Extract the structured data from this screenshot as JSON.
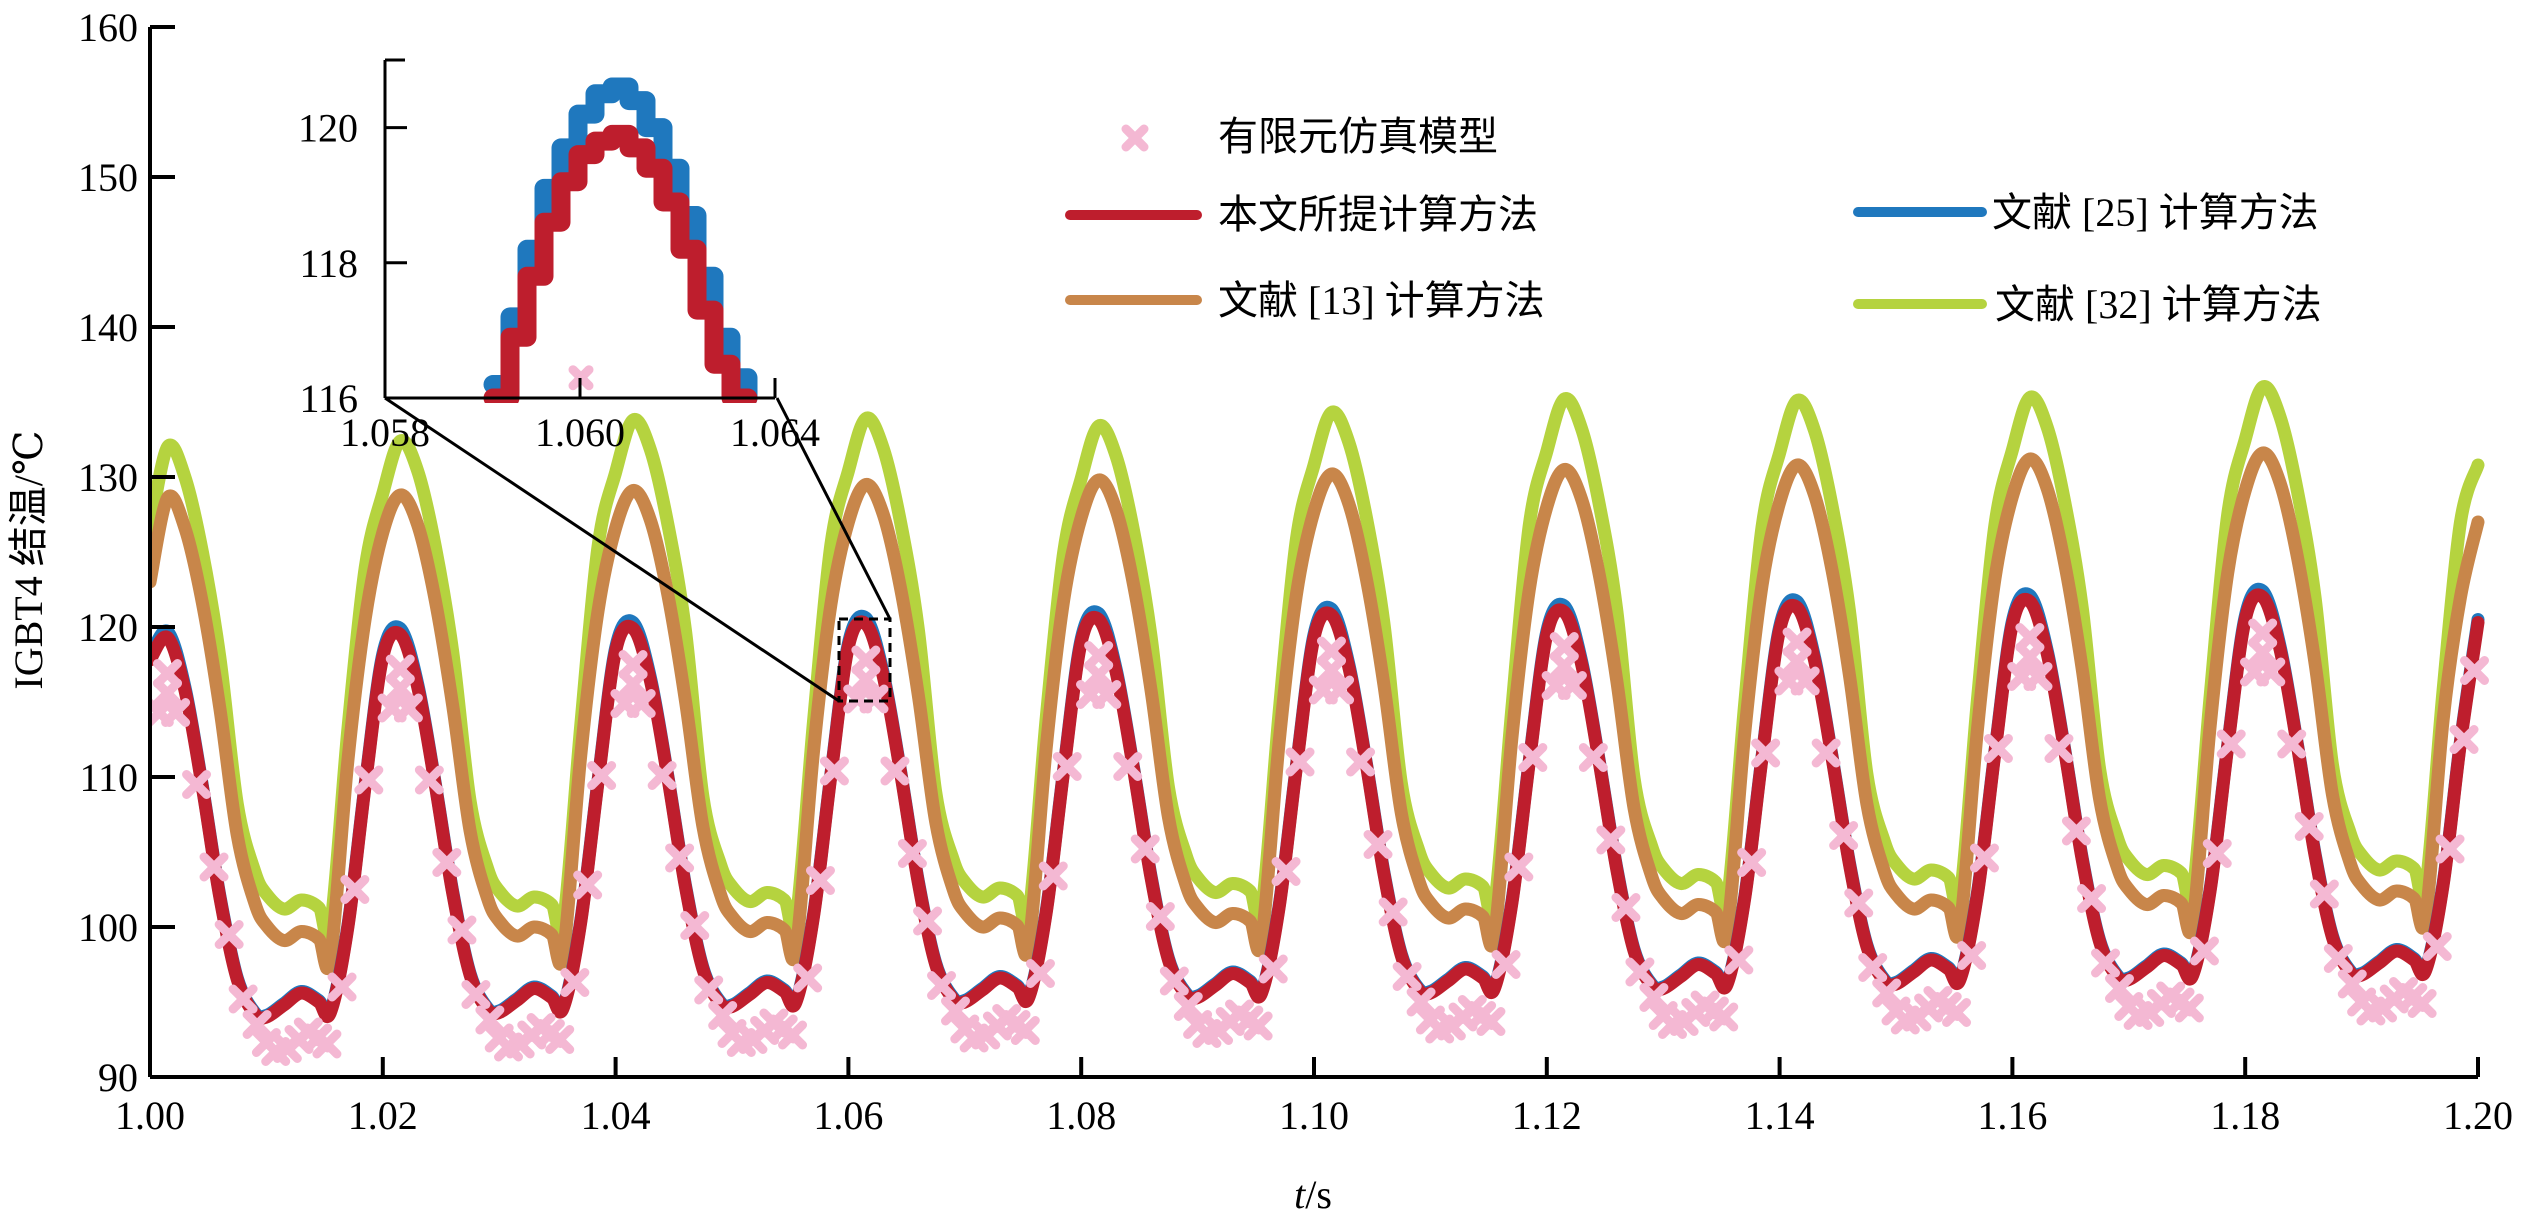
{
  "chart_data": {
    "type": "line",
    "title": "",
    "xlabel_italic": "t",
    "xlabel_unit": "/s",
    "ylabel": "IGBT4 结温/℃",
    "xlim": [
      1.0,
      1.2
    ],
    "ylim": [
      90,
      160
    ],
    "grid": false,
    "legend_placement": "top-right",
    "x_ticks": [
      "1.00",
      "1.02",
      "1.04",
      "1.06",
      "1.08",
      "1.10",
      "1.12",
      "1.14",
      "1.16",
      "1.18",
      "1.20"
    ],
    "y_ticks": [
      "90",
      "100",
      "110",
      "120",
      "130",
      "140",
      "150",
      "160"
    ],
    "legend": [
      {
        "key": "fe",
        "label": "有限元仿真模型",
        "marker": "x"
      },
      {
        "key": "proposed",
        "label": "本文所提计算方法",
        "marker": "line"
      },
      {
        "key": "ref25",
        "label": "文献 [25] 计算方法",
        "marker": "line"
      },
      {
        "key": "ref13",
        "label": "文献 [13] 计算方法",
        "marker": "line"
      },
      {
        "key": "ref32",
        "label": "文献 [32] 计算方法",
        "marker": "line"
      }
    ],
    "colors": {
      "fe": "#F4B8D3",
      "proposed": "#BE1E2D",
      "ref25": "#1F78BE",
      "ref13": "#C8864A",
      "ref32": "#B5D33F"
    },
    "cycle_offsets": [
      0.0,
      0.0015,
      0.003,
      0.0045,
      0.006,
      0.0075,
      0.009,
      0.01,
      0.0115,
      0.013,
      0.0145,
      0.0155,
      0.017,
      0.0185
    ],
    "cycle_period": 0.02,
    "series": [
      {
        "key": "ref32",
        "name": "文献 [32] 计算方法",
        "values": [
          126.5,
          132.0,
          130.0,
          125.0,
          118.0,
          108.2,
          103.7,
          102.2,
          101.2,
          101.8,
          101.3,
          100.0,
          113.2,
          124.0,
          128.9,
          132.4,
          130.4,
          125.4,
          118.4,
          108.4,
          103.9,
          102.4,
          101.4,
          102.0,
          101.5,
          100.2,
          113.4,
          125.4,
          130.3,
          133.8,
          131.8,
          126.8,
          119.8,
          108.7,
          104.2,
          102.7,
          101.7,
          102.3,
          101.8,
          100.5,
          113.7,
          125.5,
          130.4,
          133.9,
          131.9,
          126.9,
          119.9,
          109.0,
          104.5,
          103.0,
          102.0,
          102.6,
          102.1,
          100.8,
          114.0,
          125.0,
          129.9,
          133.4,
          131.4,
          126.4,
          119.4,
          109.3,
          104.8,
          103.3,
          102.3,
          102.9,
          102.4,
          101.1,
          114.3,
          125.9,
          130.8,
          134.3,
          132.3,
          127.3,
          120.3,
          109.6,
          105.1,
          103.6,
          102.6,
          103.2,
          102.7,
          101.4,
          114.6,
          126.8,
          131.7,
          135.2,
          133.2,
          128.2,
          121.2,
          109.9,
          105.4,
          103.9,
          102.9,
          103.5,
          103.0,
          101.7,
          114.9,
          126.7,
          131.6,
          135.1,
          133.1,
          128.1,
          121.1,
          110.2,
          105.7,
          104.2,
          103.2,
          103.8,
          103.3,
          102.0,
          115.2,
          126.8,
          131.8,
          135.3,
          133.3,
          128.3,
          121.3,
          110.5,
          106.0,
          104.5,
          103.5,
          104.1,
          103.6,
          102.3,
          115.5,
          127.5,
          132.5,
          136.0,
          134.0,
          129.0,
          122.0,
          110.8,
          106.3,
          104.8,
          103.8,
          104.4,
          103.9,
          102.6,
          115.8,
          127.0,
          130.8
        ]
      },
      {
        "key": "ref13",
        "name": "文献 [13] 计算方法",
        "values": [
          123.0,
          128.6,
          126.6,
          121.6,
          114.6,
          106.1,
          101.6,
          100.1,
          99.1,
          99.7,
          99.2,
          97.9,
          111.1,
          120.6,
          126.3,
          128.8,
          126.8,
          121.8,
          114.8,
          106.4,
          101.9,
          100.4,
          99.4,
          100.0,
          99.5,
          98.2,
          111.4,
          121.1,
          126.6,
          129.1,
          127.1,
          122.1,
          115.1,
          106.7,
          102.2,
          100.7,
          99.7,
          100.3,
          99.8,
          98.5,
          111.7,
          121.5,
          127.0,
          129.5,
          127.5,
          122.5,
          115.5,
          107.0,
          102.5,
          101.0,
          100.0,
          100.6,
          100.1,
          98.8,
          112.0,
          121.8,
          127.3,
          129.8,
          127.8,
          122.8,
          115.8,
          107.3,
          102.8,
          101.3,
          100.3,
          100.9,
          100.4,
          99.1,
          112.3,
          122.2,
          127.7,
          130.2,
          128.2,
          123.2,
          116.2,
          107.6,
          103.1,
          101.6,
          100.6,
          101.2,
          100.7,
          99.4,
          112.6,
          122.5,
          128.0,
          130.5,
          128.5,
          123.5,
          116.5,
          107.9,
          103.4,
          101.9,
          100.9,
          101.5,
          101.0,
          99.7,
          112.9,
          122.8,
          128.3,
          130.8,
          128.8,
          123.8,
          116.8,
          108.2,
          103.7,
          102.2,
          101.2,
          101.8,
          101.3,
          100.0,
          113.2,
          123.2,
          128.7,
          131.2,
          129.2,
          124.2,
          117.2,
          108.5,
          104.0,
          102.5,
          101.5,
          102.1,
          101.6,
          100.3,
          113.5,
          123.6,
          129.1,
          131.6,
          129.6,
          124.6,
          117.6,
          108.8,
          104.3,
          102.8,
          101.8,
          102.4,
          101.9,
          100.6,
          113.8,
          122.0,
          127.0
        ]
      },
      {
        "key": "ref25",
        "name": "文献 [25] 计算方法",
        "values": [
          118.0,
          119.7,
          116.0,
          109.4,
          102.1,
          96.6,
          94.3,
          94.1,
          94.9,
          95.7,
          95.1,
          94.4,
          100.1,
          109.6,
          118.2,
          119.9,
          116.2,
          109.6,
          102.4,
          96.9,
          94.6,
          94.4,
          95.2,
          96.0,
          95.4,
          94.7,
          100.4,
          109.8,
          118.6,
          120.3,
          116.6,
          110.0,
          102.8,
          97.3,
          95.0,
          94.8,
          95.6,
          96.4,
          95.8,
          95.1,
          100.8,
          110.2,
          118.9,
          120.6,
          116.9,
          110.3,
          103.1,
          97.6,
          95.3,
          95.1,
          95.9,
          96.7,
          96.1,
          95.4,
          101.1,
          110.5,
          119.2,
          120.9,
          117.2,
          110.6,
          103.4,
          97.9,
          95.6,
          95.4,
          96.2,
          97.0,
          96.4,
          95.7,
          101.4,
          110.8,
          119.5,
          121.2,
          117.5,
          110.9,
          103.7,
          98.2,
          95.9,
          95.7,
          96.5,
          97.3,
          96.7,
          96.0,
          101.7,
          111.1,
          119.7,
          121.4,
          117.7,
          111.1,
          104.0,
          98.5,
          96.2,
          96.0,
          96.8,
          97.6,
          97.0,
          96.3,
          102.0,
          111.4,
          120.0,
          121.7,
          118.0,
          111.4,
          104.3,
          98.8,
          96.5,
          96.3,
          97.1,
          97.9,
          97.3,
          96.6,
          102.3,
          111.7,
          120.4,
          122.1,
          118.4,
          111.8,
          104.6,
          99.1,
          96.8,
          96.6,
          97.4,
          98.2,
          97.6,
          96.9,
          102.6,
          112.1,
          120.7,
          122.4,
          118.7,
          112.1,
          104.9,
          99.4,
          97.1,
          96.9,
          97.7,
          98.5,
          97.9,
          97.2,
          102.9,
          112.4,
          120.5
        ]
      },
      {
        "key": "proposed",
        "name": "本文所提计算方法",
        "values": [
          117.8,
          119.3,
          115.8,
          109.3,
          102.0,
          96.5,
          94.2,
          94.0,
          94.8,
          95.6,
          95.0,
          94.3,
          100.0,
          109.5,
          118.0,
          119.5,
          116.0,
          109.5,
          102.3,
          96.8,
          94.5,
          94.3,
          95.1,
          95.9,
          95.3,
          94.6,
          100.3,
          109.7,
          118.4,
          119.9,
          116.4,
          109.9,
          102.7,
          97.2,
          94.9,
          94.7,
          95.5,
          96.3,
          95.7,
          95.0,
          100.7,
          110.1,
          118.7,
          120.2,
          116.7,
          110.2,
          103.0,
          97.5,
          95.2,
          95.0,
          95.8,
          96.6,
          96.0,
          95.3,
          101.0,
          110.4,
          119.0,
          120.5,
          117.0,
          110.5,
          103.3,
          97.8,
          95.5,
          95.3,
          96.1,
          96.9,
          96.3,
          95.6,
          101.3,
          110.7,
          119.3,
          120.8,
          117.3,
          110.8,
          103.6,
          98.1,
          95.8,
          95.6,
          96.4,
          97.2,
          96.6,
          95.9,
          101.6,
          111.0,
          119.5,
          121.0,
          117.5,
          111.0,
          103.9,
          98.4,
          96.1,
          95.9,
          96.7,
          97.5,
          96.9,
          96.2,
          101.9,
          111.3,
          119.8,
          121.3,
          117.8,
          111.3,
          104.2,
          98.7,
          96.4,
          96.2,
          97.0,
          97.8,
          97.2,
          96.5,
          102.2,
          111.6,
          120.2,
          121.7,
          118.2,
          111.7,
          104.5,
          99.0,
          96.7,
          96.5,
          97.3,
          98.1,
          97.5,
          96.8,
          102.5,
          112.0,
          120.5,
          122.0,
          118.5,
          112.0,
          104.8,
          99.3,
          97.0,
          96.8,
          97.6,
          98.4,
          97.8,
          97.1,
          102.8,
          112.3,
          120.3
        ]
      }
    ],
    "fe_offsets": [
      0.0008,
      0.0022,
      0.0015,
      0.0015,
      0.004,
      0.0055,
      0.0068,
      0.008,
      0.0092,
      0.01,
      0.0108,
      0.0118,
      0.0128,
      0.0136,
      0.0144,
      0.0152,
      0.0165,
      0.0176,
      0.0188
    ],
    "fe_points": [
      [
        114.3,
        114.3,
        115.6,
        116.9,
        109.5,
        104.0,
        99.5,
        95.2,
        93.5,
        92.3,
        91.7,
        91.9,
        92.5,
        93.0,
        92.6,
        92.2,
        96.0,
        102.5,
        109.8
      ],
      [
        114.6,
        114.6,
        115.9,
        117.2,
        109.8,
        104.3,
        99.8,
        95.5,
        93.8,
        92.6,
        92.0,
        92.2,
        92.8,
        93.3,
        92.9,
        92.5,
        96.3,
        102.8,
        110.1
      ],
      [
        114.9,
        114.9,
        116.2,
        117.5,
        110.1,
        104.6,
        100.1,
        95.8,
        94.1,
        92.9,
        92.3,
        92.5,
        93.1,
        93.6,
        93.2,
        92.8,
        96.6,
        103.1,
        110.4
      ],
      [
        115.2,
        115.2,
        116.5,
        117.8,
        110.4,
        104.9,
        100.4,
        96.1,
        94.4,
        93.2,
        92.6,
        92.8,
        93.4,
        93.9,
        93.5,
        93.1,
        96.9,
        103.4,
        110.7
      ],
      [
        115.5,
        115.5,
        116.8,
        118.1,
        110.7,
        105.2,
        100.7,
        96.4,
        94.7,
        93.5,
        92.9,
        93.1,
        93.7,
        94.2,
        93.8,
        93.4,
        97.2,
        103.7,
        111.0
      ],
      [
        115.8,
        115.8,
        117.1,
        118.4,
        111.0,
        105.5,
        101.0,
        96.7,
        95.0,
        93.8,
        93.2,
        93.4,
        94.0,
        94.5,
        94.1,
        93.7,
        97.5,
        104.0,
        111.3
      ],
      [
        116.1,
        116.1,
        117.4,
        118.7,
        111.3,
        105.8,
        101.3,
        97.0,
        95.3,
        94.1,
        93.5,
        93.7,
        94.3,
        94.8,
        94.4,
        94.0,
        97.8,
        104.3,
        111.6
      ],
      [
        116.4,
        116.4,
        117.7,
        119.0,
        111.6,
        106.1,
        101.6,
        97.3,
        95.6,
        94.4,
        93.8,
        94.0,
        94.6,
        95.1,
        94.7,
        94.3,
        98.1,
        104.6,
        111.9
      ],
      [
        116.7,
        116.7,
        118.0,
        119.3,
        111.9,
        106.4,
        101.9,
        97.6,
        95.9,
        94.7,
        94.1,
        94.3,
        94.9,
        95.4,
        95.0,
        94.6,
        98.4,
        104.9,
        112.2
      ],
      [
        117.0,
        117.0,
        118.3,
        119.6,
        112.2,
        106.7,
        102.2,
        97.9,
        96.2,
        95.0,
        94.4,
        94.6,
        95.2,
        95.7,
        95.3,
        94.9,
        98.7,
        105.2,
        112.5
      ]
    ],
    "fe_tail": [
      [
        1.1997,
        117.1
      ]
    ],
    "inset": {
      "xlim": [
        1.058,
        1.064
      ],
      "ylim": [
        116,
        121
      ],
      "x_ticks": [
        "1.058",
        "1.060",
        "1.064"
      ],
      "y_ticks": [
        "116",
        "118",
        "120"
      ],
      "t": [
        1.059,
        1.0593,
        1.0596,
        1.0599,
        1.0602,
        1.0605,
        1.0608,
        1.0611,
        1.0614,
        1.0617,
        1.062,
        1.0623,
        1.0626,
        1.0629,
        1.0632,
        1.0635
      ],
      "proposed": [
        116.0,
        116.9,
        117.8,
        118.6,
        119.2,
        119.6,
        119.8,
        119.9,
        119.7,
        119.4,
        118.9,
        118.2,
        117.3,
        116.5,
        116.0,
        116.0
      ],
      "ref25": [
        116.2,
        117.2,
        118.2,
        119.1,
        119.7,
        120.2,
        120.5,
        120.6,
        120.4,
        120.0,
        119.4,
        118.7,
        117.8,
        116.9,
        116.3,
        116.0
      ],
      "fe": [
        [
          1.061,
          116.3
        ]
      ]
    }
  }
}
